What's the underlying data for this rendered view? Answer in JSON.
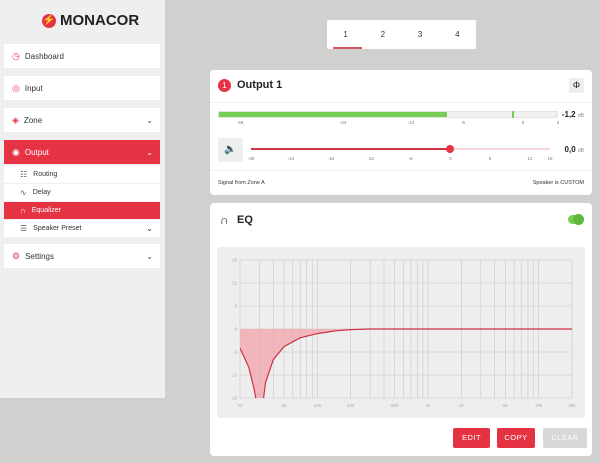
{
  "brand": "MONACOR",
  "sidebar": {
    "items": [
      {
        "label": "Dashboard",
        "icon": "dashboard-icon"
      },
      {
        "label": "Input",
        "icon": "input-icon"
      },
      {
        "label": "Zone",
        "icon": "zone-icon"
      },
      {
        "label": "Output",
        "icon": "output-icon",
        "active": true
      },
      {
        "label": "Settings",
        "icon": "settings-icon"
      }
    ],
    "output_sub": [
      {
        "label": "Routing"
      },
      {
        "label": "Delay"
      },
      {
        "label": "Equalizer",
        "active": true
      },
      {
        "label": "Speaker Preset"
      }
    ]
  },
  "tabs": [
    "1",
    "2",
    "3",
    "4"
  ],
  "output": {
    "number": "1",
    "title": "Output 1",
    "meter": {
      "level_db": -8,
      "peak_db": -1.2,
      "ticks": [
        "-48",
        "-24",
        "-12",
        "-6",
        "0",
        "3"
      ],
      "value": "-1,2",
      "unit": "dB",
      "color": "#77cc55"
    },
    "gain": {
      "value_db": 0,
      "min": -30,
      "max": 15,
      "ticks": [
        "-30",
        "-24",
        "-18",
        "-12",
        "-6",
        "0",
        "6",
        "12",
        "15"
      ],
      "value": "0,0",
      "unit": "dB"
    },
    "signal_from": "Signal from Zone A",
    "speaker": "Speaker is CUSTOM"
  },
  "eq": {
    "title": "EQ",
    "enabled": true,
    "chart_data": {
      "type": "line",
      "x_scale": "log",
      "xlim": [
        20,
        20000
      ],
      "ylim": [
        -18,
        18
      ],
      "xticks": [
        "20",
        "50",
        "100",
        "200",
        "500",
        "1k",
        "2k",
        "5k",
        "10k",
        "20k"
      ],
      "yticks": [
        "18",
        "12",
        "6",
        "0",
        "-6",
        "-12",
        "-18"
      ],
      "curve": [
        [
          20,
          -5
        ],
        [
          24,
          -10
        ],
        [
          27,
          -16
        ],
        [
          28.5,
          -20
        ],
        [
          32,
          -20
        ],
        [
          34,
          -14
        ],
        [
          40,
          -8
        ],
        [
          50,
          -4.6
        ],
        [
          70,
          -2.3
        ],
        [
          100,
          -1.2
        ],
        [
          150,
          -0.45
        ],
        [
          200,
          -0.15
        ],
        [
          300,
          0
        ],
        [
          20000,
          0
        ]
      ],
      "color": "#cc3344"
    },
    "buttons": {
      "edit": "EDIT",
      "copy": "COPY",
      "clear": "CLEAR"
    }
  },
  "accent": "#e63344"
}
